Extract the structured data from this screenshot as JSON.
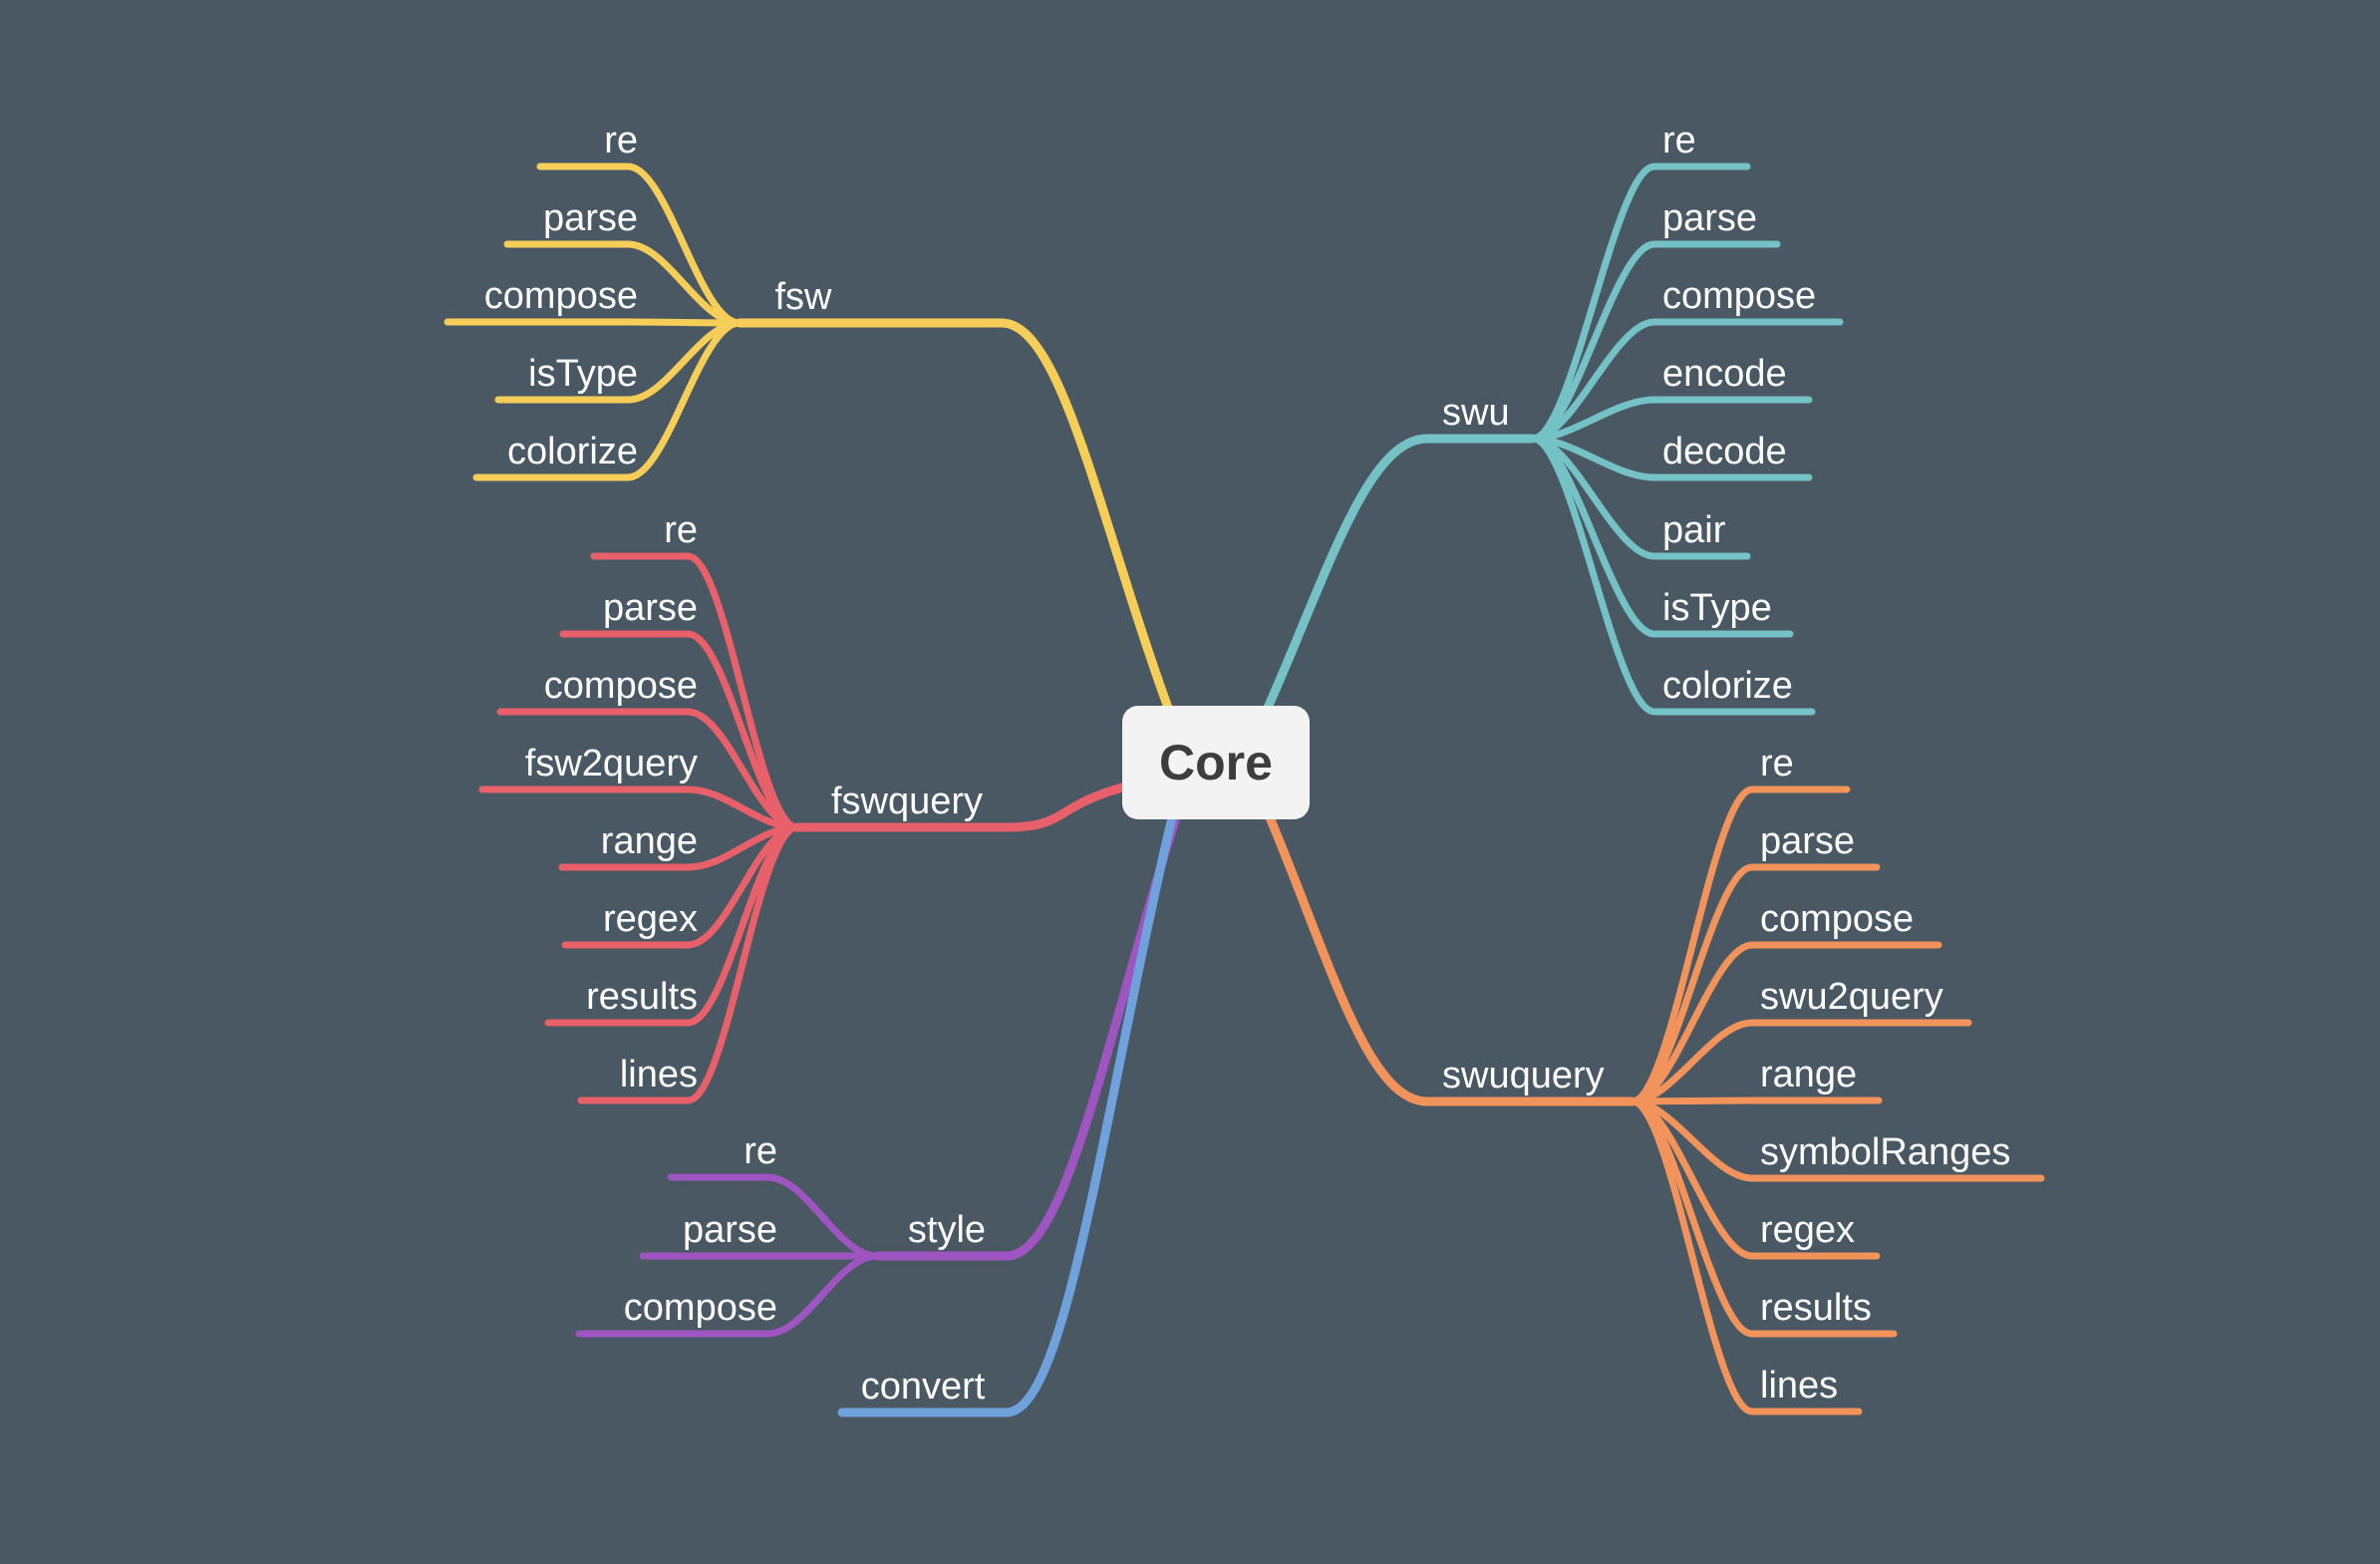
{
  "root": {
    "label": "Core"
  },
  "branches": [
    {
      "label": "fsw",
      "color": "#f5cd57",
      "children": [
        "re",
        "parse",
        "compose",
        "isType",
        "colorize"
      ]
    },
    {
      "label": "fswquery",
      "color": "#e8606a",
      "children": [
        "re",
        "parse",
        "compose",
        "fsw2query",
        "range",
        "regex",
        "results",
        "lines"
      ]
    },
    {
      "label": "style",
      "color": "#9f55c1",
      "children": [
        "re",
        "parse",
        "compose"
      ]
    },
    {
      "label": "convert",
      "color": "#6fa2dc",
      "children": []
    },
    {
      "label": "swu",
      "color": "#74c1c6",
      "children": [
        "re",
        "parse",
        "compose",
        "encode",
        "decode",
        "pair",
        "isType",
        "colorize"
      ]
    },
    {
      "label": "swuquery",
      "color": "#f1935a",
      "children": [
        "re",
        "parse",
        "compose",
        "swu2query",
        "range",
        "symbolRanges",
        "regex",
        "results",
        "lines"
      ]
    }
  ]
}
